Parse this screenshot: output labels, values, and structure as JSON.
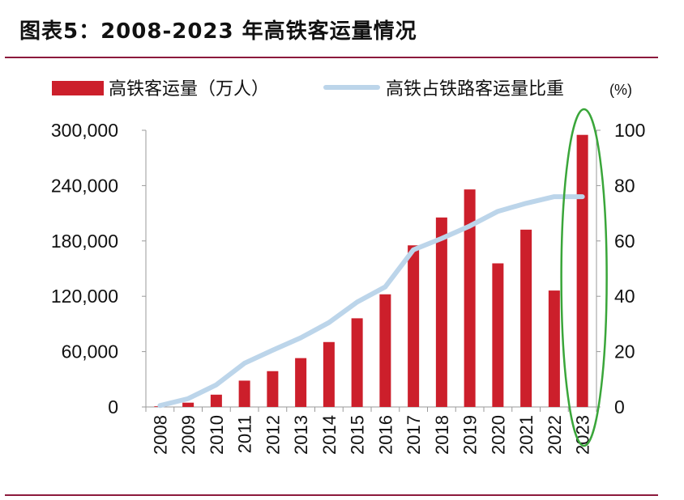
{
  "figure": {
    "title": "图表5：2008-2023 年高铁客运量情况"
  },
  "colors": {
    "bar": "#cc1f2b",
    "line": "#bcd5ea",
    "accent_rule": "#8c1a3c",
    "highlight_ellipse": "#3aa63a"
  },
  "chart_data": {
    "type": "bar",
    "categories": [
      "2008",
      "2009",
      "2010",
      "2011",
      "2012",
      "2013",
      "2014",
      "2015",
      "2016",
      "2017",
      "2018",
      "2019",
      "2020",
      "2021",
      "2022",
      "2023"
    ],
    "series": [
      {
        "name": "高铁客运量（万人）",
        "type": "bar",
        "axis": "left",
        "values": [
          734,
          4651,
          13323,
          28552,
          38815,
          52962,
          70378,
          96139,
          122128,
          175216,
          205430,
          235833,
          155707,
          192236,
          126234,
          295000
        ]
      },
      {
        "name": "高铁占铁路客运量比重",
        "unit": "(%)",
        "type": "line",
        "axis": "right",
        "values": [
          0.5,
          3.0,
          8.0,
          15.8,
          20.5,
          25.0,
          30.5,
          37.9,
          43.4,
          56.8,
          60.9,
          65.4,
          70.7,
          73.6,
          76.0,
          76.0
        ]
      }
    ],
    "y_left": {
      "ylim": [
        0,
        300000
      ],
      "ticks": [
        "0",
        "60,000",
        "120,000",
        "180,000",
        "240,000",
        "300,000"
      ],
      "tick_values": [
        0,
        60000,
        120000,
        180000,
        240000,
        300000
      ]
    },
    "y_right": {
      "ylim": [
        0,
        100
      ],
      "ticks": [
        "0",
        "20",
        "40",
        "60",
        "80",
        "100"
      ],
      "tick_values": [
        0,
        20,
        40,
        60,
        80,
        100
      ]
    },
    "legend": {
      "placement": "top",
      "bar_label": "高铁客运量（万人）",
      "line_label": "高铁占铁路客运量比重",
      "line_unit": "(%)"
    },
    "annotation": {
      "highlight": "2023",
      "shape": "ellipse"
    },
    "grid": false
  }
}
